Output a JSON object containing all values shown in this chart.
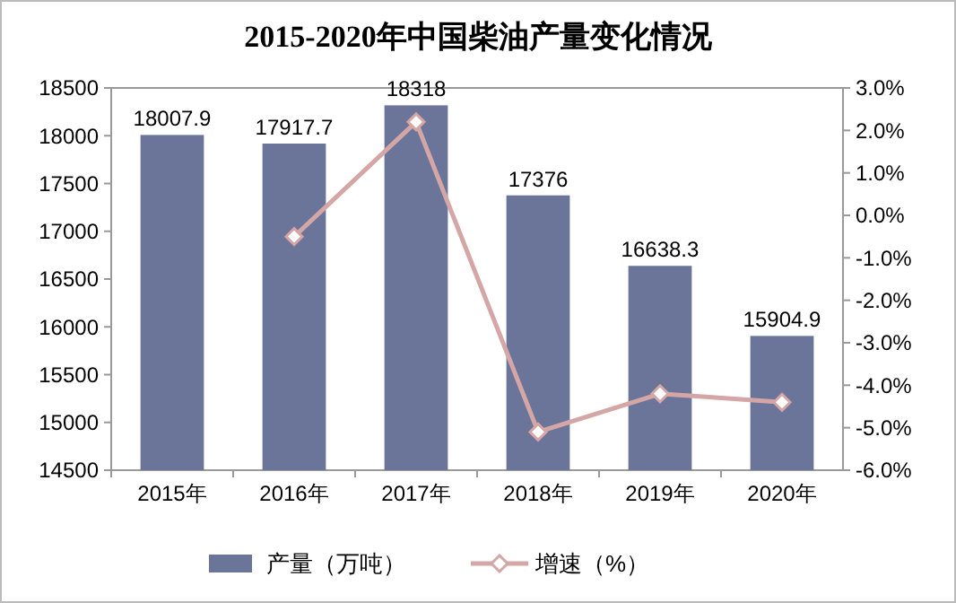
{
  "chart_data": {
    "type": "bar",
    "title": "2015-2020年中国柴油产量变化情况",
    "categories": [
      "2015年",
      "2016年",
      "2017年",
      "2018年",
      "2019年",
      "2020年"
    ],
    "series": [
      {
        "name": "产量（万吨）",
        "color": "#6b7599",
        "values": [
          18007.9,
          17917.7,
          18318,
          17376,
          16638.3,
          15904.9
        ],
        "value_labels": [
          "18007.9",
          "17917.7",
          "18318",
          "17376",
          "16638.3",
          "15904.9"
        ]
      },
      {
        "name": "增速（%）",
        "type": "line",
        "axis": "y2",
        "color": "#d5a6a6",
        "marker": "diamond",
        "values": [
          null,
          -0.5,
          2.2,
          -5.1,
          -4.2,
          -4.4
        ]
      }
    ],
    "ylim": [
      14500,
      18500
    ],
    "yticks": [
      14500,
      15000,
      15500,
      16000,
      16500,
      17000,
      17500,
      18000,
      18500
    ],
    "y2lim": [
      -6,
      3
    ],
    "y2ticks": [
      {
        "value": -6,
        "label": "-6.0%"
      },
      {
        "value": -5,
        "label": "-5.0%"
      },
      {
        "value": -4,
        "label": "-4.0%"
      },
      {
        "value": -3,
        "label": "-3.0%"
      },
      {
        "value": -2,
        "label": "-2.0%"
      },
      {
        "value": -1,
        "label": "-1.0%"
      },
      {
        "value": 0,
        "label": "0.0%"
      },
      {
        "value": 1,
        "label": "1.0%"
      },
      {
        "value": 2,
        "label": "2.0%"
      },
      {
        "value": 3,
        "label": "3.0%"
      }
    ],
    "legend": "bottom"
  }
}
